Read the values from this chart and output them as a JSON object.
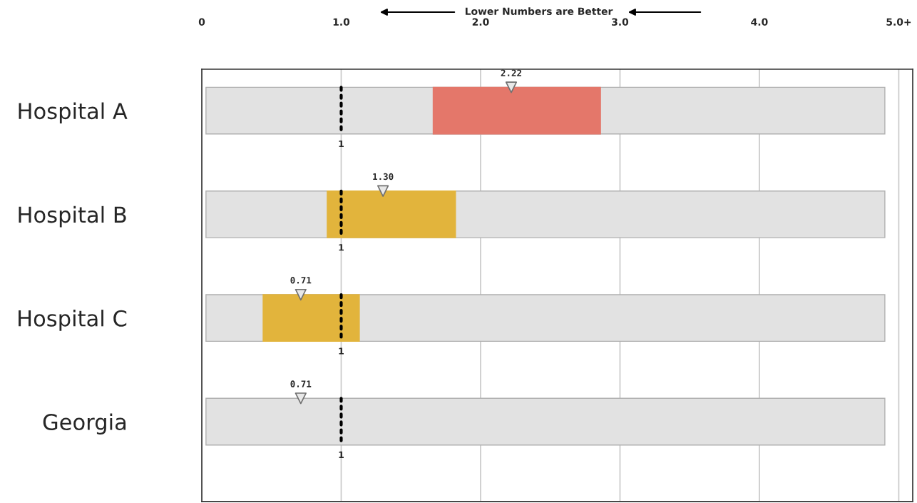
{
  "chart_data": {
    "type": "bar",
    "orientation": "horizontal",
    "title": "Lower Numbers are Better",
    "categories": [
      "Hospital A",
      "Hospital B",
      "Hospital C",
      "Georgia"
    ],
    "series": [
      {
        "color": "#e2e2e2",
        "base": [
          0.03,
          0.03,
          0.03,
          0.03
        ],
        "values": [
          4.87,
          4.87,
          4.87,
          4.87
        ]
      },
      {
        "colors": [
          "#e4776a",
          "#e2b43c",
          "#e2b43c",
          null
        ],
        "base": [
          1.66,
          0.9,
          0.44,
          null
        ],
        "values": [
          1.2,
          0.92,
          0.69,
          null
        ]
      },
      {
        "type": "scatter",
        "color": "#e8e8e8",
        "marker": "triangle",
        "data_labels": true,
        "values": [
          2.22,
          1.3,
          0.71,
          0.71
        ],
        "value_labels": [
          "2.22",
          "1.30",
          "0.71",
          "0.71"
        ]
      }
    ],
    "xlim": [
      0,
      5.1
    ],
    "xticks": [
      0,
      {
        "value": 1,
        "label": "1.0"
      },
      {
        "value": 2,
        "label": "2.0"
      },
      {
        "value": 3,
        "label": "3.0"
      },
      {
        "value": 4,
        "label": "4.0"
      },
      {
        "value": 5,
        "label": "5.0+"
      }
    ],
    "grid": "x",
    "ref_lines": [
      {
        "axis": "x",
        "value": 1,
        "label": "1",
        "color": "#000000",
        "line_style": "dotted"
      }
    ]
  }
}
